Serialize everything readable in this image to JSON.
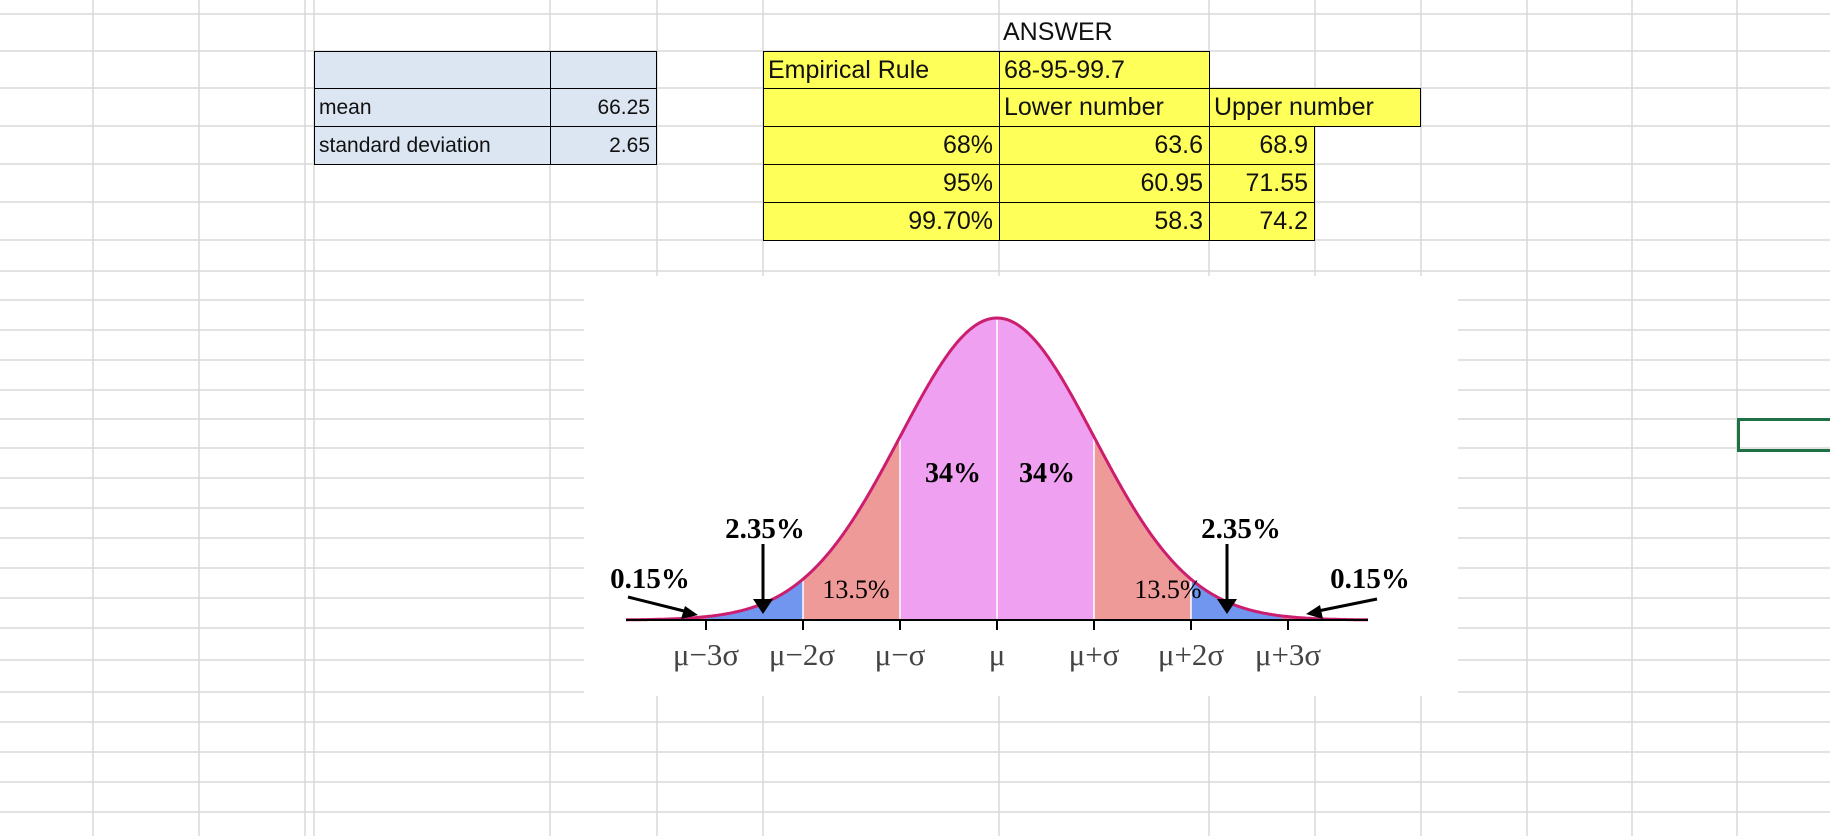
{
  "colors": {
    "grid_line": "#d8d8d8",
    "stats_fill": "#dce6f2",
    "answer_fill": "#ffff5a",
    "curve_center": "#f0a0f0",
    "curve_mid": "#ee9a98",
    "curve_tail": "#7196ef",
    "curve_edge": "#ee7090",
    "curve_outline": "#cc1e6e",
    "selection": "#1e7145"
  },
  "stats": {
    "mean_label": "mean",
    "mean_value": "66.25",
    "sd_label": "standard deviation",
    "sd_value": "2.65"
  },
  "answer": {
    "heading": "ANSWER",
    "rule_label": "Empirical Rule",
    "rule_value": "68-95-99.7",
    "lower_header": "Lower number",
    "upper_header": "Upper number",
    "rows": [
      {
        "pct": "68%",
        "lower": "63.6",
        "upper": "68.9"
      },
      {
        "pct": "95%",
        "lower": "60.95",
        "upper": "71.55"
      },
      {
        "pct": "99.70%",
        "lower": "58.3",
        "upper": "74.2"
      }
    ]
  },
  "diagram": {
    "pct_center_left": "34%",
    "pct_center_right": "34%",
    "pct_mid_left": "13.5%",
    "pct_mid_right": "13.5%",
    "pct_tail_left": "2.35%",
    "pct_tail_right": "2.35%",
    "pct_edge_left": "0.15%",
    "pct_edge_right": "0.15%",
    "tick_m3": "μ−3σ",
    "tick_m2": "μ−2σ",
    "tick_m1": "μ−σ",
    "tick_0": "μ",
    "tick_p1": "μ+σ",
    "tick_p2": "μ+2σ",
    "tick_p3": "μ+3σ"
  }
}
